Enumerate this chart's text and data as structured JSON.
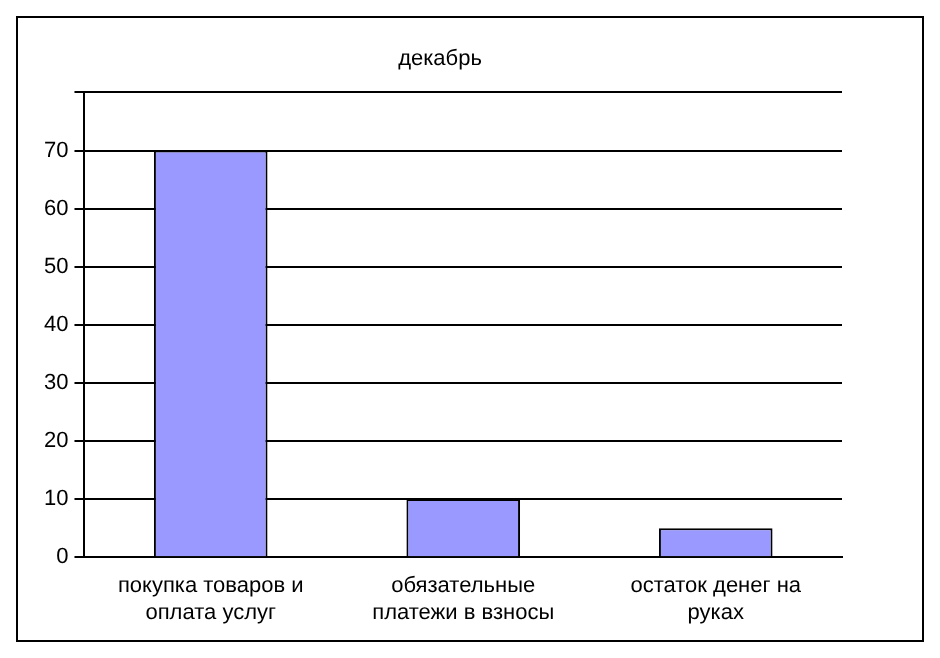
{
  "chart_data": {
    "type": "bar",
    "title": "декабрь",
    "categories": [
      "покупка товаров и оплата услуг",
      "обязательные платежи в взносы",
      "остаток денег на руках"
    ],
    "values": [
      70,
      10,
      5
    ],
    "color": "#9999ff",
    "ylim": [
      0,
      80
    ],
    "yticks": [
      0,
      10,
      20,
      30,
      40,
      50,
      60,
      70,
      {
        "value": 80,
        "label": null
      }
    ],
    "grid": "y",
    "legend": false
  }
}
